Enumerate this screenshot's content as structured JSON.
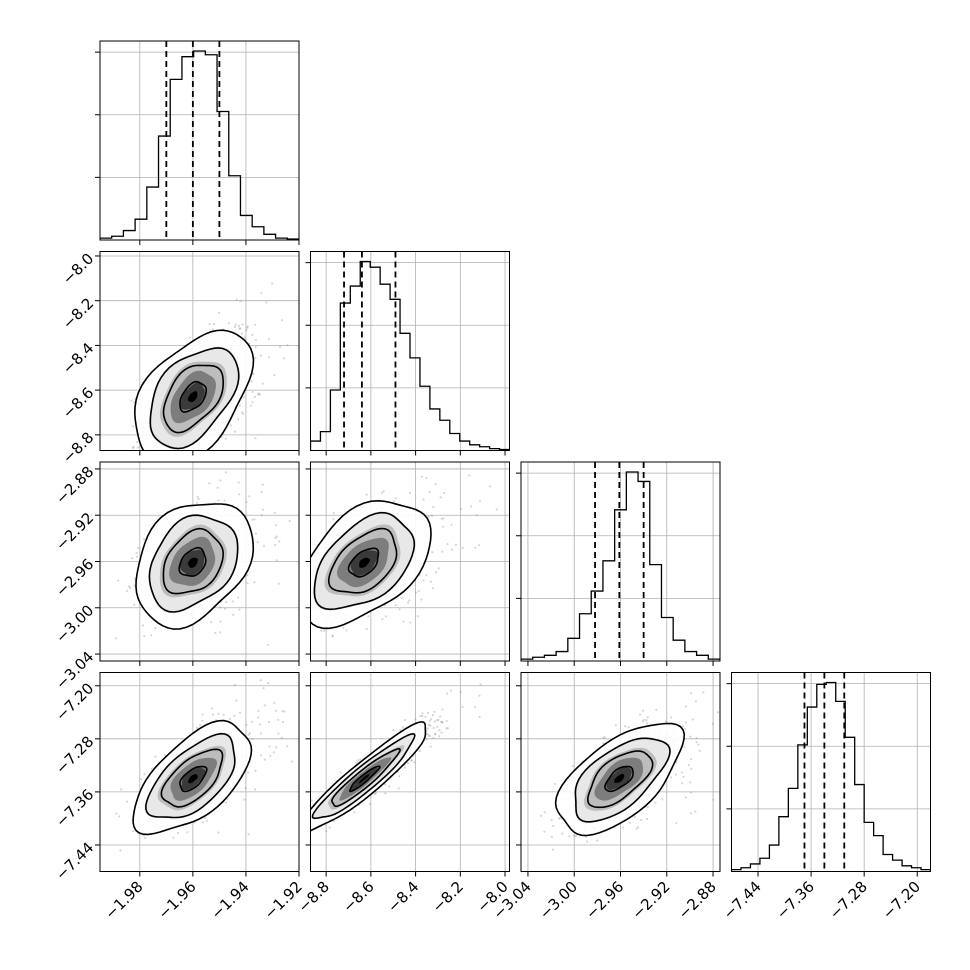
{
  "chart_data": {
    "type": "corner",
    "title": "",
    "grid": true,
    "parameters": [
      {
        "label": "",
        "ticks": [
          -1.98,
          -1.96,
          -1.94,
          -1.92
        ],
        "tick_labels": [
          "−1.98",
          "−1.96",
          "−1.94",
          "−1.92"
        ],
        "range": [
          -1.995,
          -1.92
        ],
        "median": -1.96,
        "q16": -1.97,
        "q84": -1.95
      },
      {
        "label": "",
        "ticks": [
          -8.8,
          -8.6,
          -8.4,
          -8.2,
          -8.0
        ],
        "tick_labels": [
          "−8.8",
          "−8.6",
          "−8.4",
          "−8.2",
          "−8.0"
        ],
        "range": [
          -8.87,
          -7.98
        ],
        "median": -8.64,
        "q16": -8.72,
        "q84": -8.49
      },
      {
        "label": "",
        "ticks": [
          -3.04,
          -3.0,
          -2.96,
          -2.92,
          -2.88
        ],
        "tick_labels": [
          "−3.04",
          "−3.00",
          "−2.96",
          "−2.92",
          "−2.88"
        ],
        "range": [
          -3.046,
          -2.874
        ],
        "median": -2.961,
        "q16": -2.982,
        "q84": -2.94
      },
      {
        "label": "",
        "ticks": [
          -7.44,
          -7.36,
          -7.28,
          -7.2
        ],
        "tick_labels": [
          "−7.44",
          "−7.36",
          "−7.28",
          "−7.20"
        ],
        "range": [
          -7.48,
          -7.18
        ],
        "median": -7.34,
        "q16": -7.37,
        "q84": -7.31
      }
    ],
    "histograms": [
      [
        0.01,
        0.02,
        0.05,
        0.11,
        0.28,
        0.55,
        0.85,
        0.97,
        1.0,
        0.98,
        0.68,
        0.34,
        0.13,
        0.07,
        0.03,
        0.01,
        0.005
      ],
      [
        0.05,
        0.1,
        0.32,
        0.78,
        0.87,
        1.0,
        0.97,
        0.88,
        0.8,
        0.62,
        0.49,
        0.34,
        0.22,
        0.16,
        0.09,
        0.05,
        0.03,
        0.02,
        0.01,
        0.005
      ],
      [
        0.01,
        0.02,
        0.03,
        0.05,
        0.12,
        0.25,
        0.37,
        0.53,
        0.8,
        1.0,
        0.95,
        0.51,
        0.23,
        0.11,
        0.05,
        0.03,
        0.01
      ],
      [
        0.01,
        0.02,
        0.04,
        0.07,
        0.14,
        0.29,
        0.44,
        0.67,
        0.87,
        0.99,
        1.0,
        0.9,
        0.71,
        0.46,
        0.26,
        0.19,
        0.09,
        0.06,
        0.03,
        0.02,
        0.01
      ]
    ],
    "pairs": [
      {
        "x": 0,
        "y": 1,
        "mean": [
          -1.96,
          -8.63
        ],
        "sd": [
          0.009,
          0.12
        ],
        "rho": 0.45
      },
      {
        "x": 0,
        "y": 2,
        "mean": [
          -1.96,
          -2.961
        ],
        "sd": [
          0.009,
          0.022
        ],
        "rho": 0.3
      },
      {
        "x": 1,
        "y": 2,
        "mean": [
          -8.63,
          -2.961
        ],
        "sd": [
          0.12,
          0.022
        ],
        "rho": 0.45
      },
      {
        "x": 0,
        "y": 3,
        "mean": [
          -1.96,
          -7.34
        ],
        "sd": [
          0.009,
          0.034
        ],
        "rho": 0.6
      },
      {
        "x": 1,
        "y": 3,
        "mean": [
          -8.63,
          -7.34
        ],
        "sd": [
          0.12,
          0.034
        ],
        "rho": 0.93
      },
      {
        "x": 2,
        "y": 3,
        "mean": [
          -2.961,
          -7.34
        ],
        "sd": [
          0.022,
          0.034
        ],
        "rho": 0.6
      }
    ]
  }
}
